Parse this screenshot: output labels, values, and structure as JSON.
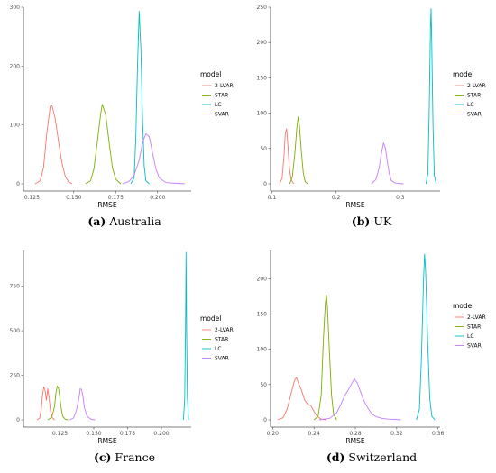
{
  "chart_data": [
    {
      "type": "density",
      "xlabel": "RMSE",
      "caption": {
        "letter": "(a)",
        "text": "Australia"
      },
      "legend": {
        "title": "model",
        "position": "right"
      },
      "xlim": [
        0.12,
        0.22
      ],
      "ylim": [
        0,
        300
      ],
      "xticks": [
        {
          "v": 0.125,
          "label": "0.125"
        },
        {
          "v": 0.15,
          "label": "0.150"
        },
        {
          "v": 0.175,
          "label": "0.175"
        },
        {
          "v": 0.2,
          "label": "0.200"
        }
      ],
      "yticks": [
        {
          "v": 0,
          "label": "0"
        },
        {
          "v": 100,
          "label": "100"
        },
        {
          "v": 200,
          "label": "200"
        },
        {
          "v": 300,
          "label": "300"
        }
      ],
      "series": [
        {
          "name": "2-LVAR",
          "color": "#F8766D",
          "points": [
            [
              0.127,
              0
            ],
            [
              0.13,
              5
            ],
            [
              0.132,
              28
            ],
            [
              0.134,
              88
            ],
            [
              0.136,
              132
            ],
            [
              0.137,
              133
            ],
            [
              0.139,
              110
            ],
            [
              0.141,
              70
            ],
            [
              0.143,
              35
            ],
            [
              0.145,
              12
            ],
            [
              0.147,
              3
            ],
            [
              0.149,
              0
            ]
          ]
        },
        {
          "name": "STAR",
          "color": "#7CAE00",
          "points": [
            [
              0.157,
              0
            ],
            [
              0.16,
              5
            ],
            [
              0.162,
              25
            ],
            [
              0.164,
              70
            ],
            [
              0.166,
              118
            ],
            [
              0.167,
              135
            ],
            [
              0.169,
              118
            ],
            [
              0.171,
              72
            ],
            [
              0.173,
              28
            ],
            [
              0.175,
              8
            ],
            [
              0.178,
              0
            ]
          ]
        },
        {
          "name": "LC",
          "color": "#00BFC4",
          "points": [
            [
              0.184,
              0
            ],
            [
              0.186,
              10
            ],
            [
              0.187,
              80
            ],
            [
              0.188,
              200
            ],
            [
              0.189,
              293
            ],
            [
              0.19,
              230
            ],
            [
              0.191,
              110
            ],
            [
              0.192,
              30
            ],
            [
              0.193,
              5
            ],
            [
              0.195,
              0
            ]
          ]
        },
        {
          "name": "SVAR",
          "color": "#C77CFF",
          "points": [
            [
              0.179,
              0
            ],
            [
              0.183,
              4
            ],
            [
              0.186,
              15
            ],
            [
              0.189,
              40
            ],
            [
              0.191,
              70
            ],
            [
              0.193,
              85
            ],
            [
              0.195,
              80
            ],
            [
              0.197,
              52
            ],
            [
              0.199,
              25
            ],
            [
              0.201,
              10
            ],
            [
              0.205,
              2
            ],
            [
              0.216,
              0
            ]
          ]
        }
      ]
    },
    {
      "type": "density",
      "xlabel": "RMSE",
      "caption": {
        "letter": "(b)",
        "text": "UK"
      },
      "legend": {
        "title": "model",
        "position": "right"
      },
      "xlim": [
        0.098,
        0.362
      ],
      "ylim": [
        0,
        250
      ],
      "xticks": [
        {
          "v": 0.1,
          "label": "0.1"
        },
        {
          "v": 0.2,
          "label": "0.2"
        },
        {
          "v": 0.3,
          "label": "0.3"
        }
      ],
      "yticks": [
        {
          "v": 0,
          "label": "0"
        },
        {
          "v": 50,
          "label": "50"
        },
        {
          "v": 100,
          "label": "100"
        },
        {
          "v": 150,
          "label": "150"
        },
        {
          "v": 200,
          "label": "200"
        },
        {
          "v": 250,
          "label": "250"
        }
      ],
      "series": [
        {
          "name": "2-LVAR",
          "color": "#F8766D",
          "points": [
            [
              0.112,
              0
            ],
            [
              0.116,
              8
            ],
            [
              0.119,
              40
            ],
            [
              0.121,
              72
            ],
            [
              0.123,
              78
            ],
            [
              0.125,
              55
            ],
            [
              0.127,
              25
            ],
            [
              0.13,
              6
            ],
            [
              0.134,
              0
            ]
          ]
        },
        {
          "name": "STAR",
          "color": "#7CAE00",
          "points": [
            [
              0.128,
              0
            ],
            [
              0.132,
              10
            ],
            [
              0.136,
              45
            ],
            [
              0.139,
              80
            ],
            [
              0.141,
              95
            ],
            [
              0.143,
              82
            ],
            [
              0.146,
              45
            ],
            [
              0.149,
              15
            ],
            [
              0.152,
              3
            ],
            [
              0.156,
              0
            ]
          ]
        },
        {
          "name": "LC",
          "color": "#00BFC4",
          "points": [
            [
              0.34,
              0
            ],
            [
              0.343,
              15
            ],
            [
              0.345,
              100
            ],
            [
              0.347,
              220
            ],
            [
              0.348,
              248
            ],
            [
              0.349,
              200
            ],
            [
              0.351,
              80
            ],
            [
              0.353,
              12
            ],
            [
              0.356,
              0
            ]
          ]
        },
        {
          "name": "SVAR",
          "color": "#C77CFF",
          "points": [
            [
              0.255,
              0
            ],
            [
              0.262,
              6
            ],
            [
              0.267,
              22
            ],
            [
              0.271,
              45
            ],
            [
              0.274,
              58
            ],
            [
              0.277,
              50
            ],
            [
              0.28,
              30
            ],
            [
              0.283,
              14
            ],
            [
              0.286,
              5
            ],
            [
              0.292,
              1
            ],
            [
              0.305,
              0
            ]
          ]
        }
      ]
    },
    {
      "type": "density",
      "xlabel": "RMSE",
      "caption": {
        "letter": "(c)",
        "text": "France"
      },
      "legend": {
        "title": "model",
        "position": "right"
      },
      "xlim": [
        0.098,
        0.222
      ],
      "ylim": [
        0,
        950
      ],
      "xticks": [
        {
          "v": 0.125,
          "label": "0.125"
        },
        {
          "v": 0.15,
          "label": "0.150"
        },
        {
          "v": 0.175,
          "label": "0.175"
        },
        {
          "v": 0.2,
          "label": "0.200"
        }
      ],
      "yticks": [
        {
          "v": 0,
          "label": "0"
        },
        {
          "v": 250,
          "label": "250"
        },
        {
          "v": 500,
          "label": "500"
        },
        {
          "v": 750,
          "label": "750"
        }
      ],
      "series": [
        {
          "name": "2-LVAR",
          "color": "#F8766D",
          "points": [
            [
              0.108,
              0
            ],
            [
              0.11,
              10
            ],
            [
              0.111,
              50
            ],
            [
              0.112,
              130
            ],
            [
              0.113,
              185
            ],
            [
              0.114,
              165
            ],
            [
              0.115,
              110
            ],
            [
              0.116,
              175
            ],
            [
              0.117,
              120
            ],
            [
              0.118,
              50
            ],
            [
              0.119,
              15
            ],
            [
              0.121,
              0
            ]
          ]
        },
        {
          "name": "STAR",
          "color": "#7CAE00",
          "points": [
            [
              0.116,
              0
            ],
            [
              0.119,
              15
            ],
            [
              0.121,
              75
            ],
            [
              0.122,
              150
            ],
            [
              0.123,
              190
            ],
            [
              0.124,
              175
            ],
            [
              0.125,
              120
            ],
            [
              0.126,
              60
            ],
            [
              0.127,
              20
            ],
            [
              0.129,
              3
            ],
            [
              0.131,
              0
            ]
          ]
        },
        {
          "name": "LC",
          "color": "#00BFC4",
          "points": [
            [
              0.2163,
              0
            ],
            [
              0.2172,
              120
            ],
            [
              0.2178,
              500
            ],
            [
              0.2182,
              940
            ],
            [
              0.2186,
              520
            ],
            [
              0.2192,
              130
            ],
            [
              0.22,
              0
            ]
          ]
        },
        {
          "name": "SVAR",
          "color": "#C77CFF",
          "points": [
            [
              0.132,
              0
            ],
            [
              0.135,
              10
            ],
            [
              0.137,
              50
            ],
            [
              0.139,
              120
            ],
            [
              0.14,
              175
            ],
            [
              0.141,
              170
            ],
            [
              0.142,
              130
            ],
            [
              0.143,
              70
            ],
            [
              0.145,
              20
            ],
            [
              0.148,
              3
            ],
            [
              0.151,
              0
            ]
          ]
        }
      ]
    },
    {
      "type": "density",
      "xlabel": "RMSE",
      "caption": {
        "letter": "(d)",
        "text": "Switzerland"
      },
      "legend": {
        "title": "model",
        "position": "right"
      },
      "xlim": [
        0.198,
        0.362
      ],
      "ylim": [
        0,
        240
      ],
      "xticks": [
        {
          "v": 0.2,
          "label": "0.20"
        },
        {
          "v": 0.24,
          "label": "0.24"
        },
        {
          "v": 0.28,
          "label": "0.28"
        },
        {
          "v": 0.32,
          "label": "0.32"
        },
        {
          "v": 0.36,
          "label": "0.36"
        }
      ],
      "yticks": [
        {
          "v": 0,
          "label": "0"
        },
        {
          "v": 50,
          "label": "50"
        },
        {
          "v": 100,
          "label": "100"
        },
        {
          "v": 150,
          "label": "150"
        },
        {
          "v": 200,
          "label": "200"
        }
      ],
      "series": [
        {
          "name": "2-LVAR",
          "color": "#F8766D",
          "points": [
            [
              0.205,
              0
            ],
            [
              0.21,
              3
            ],
            [
              0.214,
              15
            ],
            [
              0.218,
              38
            ],
            [
              0.221,
              55
            ],
            [
              0.223,
              60
            ],
            [
              0.225,
              52
            ],
            [
              0.228,
              42
            ],
            [
              0.231,
              28
            ],
            [
              0.234,
              22
            ],
            [
              0.237,
              20
            ],
            [
              0.24,
              12
            ],
            [
              0.243,
              5
            ],
            [
              0.247,
              1
            ],
            [
              0.252,
              0
            ]
          ]
        },
        {
          "name": "STAR",
          "color": "#7CAE00",
          "points": [
            [
              0.24,
              0
            ],
            [
              0.244,
              5
            ],
            [
              0.247,
              35
            ],
            [
              0.249,
              110
            ],
            [
              0.251,
              165
            ],
            [
              0.252,
              177
            ],
            [
              0.253,
              160
            ],
            [
              0.255,
              95
            ],
            [
              0.257,
              35
            ],
            [
              0.259,
              8
            ],
            [
              0.262,
              0
            ]
          ]
        },
        {
          "name": "LC",
          "color": "#00BFC4",
          "points": [
            [
              0.339,
              0
            ],
            [
              0.342,
              15
            ],
            [
              0.344,
              90
            ],
            [
              0.346,
              200
            ],
            [
              0.347,
              235
            ],
            [
              0.348,
              210
            ],
            [
              0.35,
              110
            ],
            [
              0.352,
              30
            ],
            [
              0.354,
              5
            ],
            [
              0.357,
              0
            ]
          ]
        },
        {
          "name": "SVAR",
          "color": "#C77CFF",
          "points": [
            [
              0.245,
              0
            ],
            [
              0.255,
              2
            ],
            [
              0.262,
              10
            ],
            [
              0.266,
              22
            ],
            [
              0.27,
              35
            ],
            [
              0.273,
              42
            ],
            [
              0.276,
              50
            ],
            [
              0.279,
              58
            ],
            [
              0.282,
              52
            ],
            [
              0.285,
              40
            ],
            [
              0.288,
              28
            ],
            [
              0.292,
              17
            ],
            [
              0.296,
              8
            ],
            [
              0.301,
              4
            ],
            [
              0.306,
              2
            ],
            [
              0.312,
              1
            ],
            [
              0.324,
              0
            ]
          ]
        }
      ]
    }
  ]
}
